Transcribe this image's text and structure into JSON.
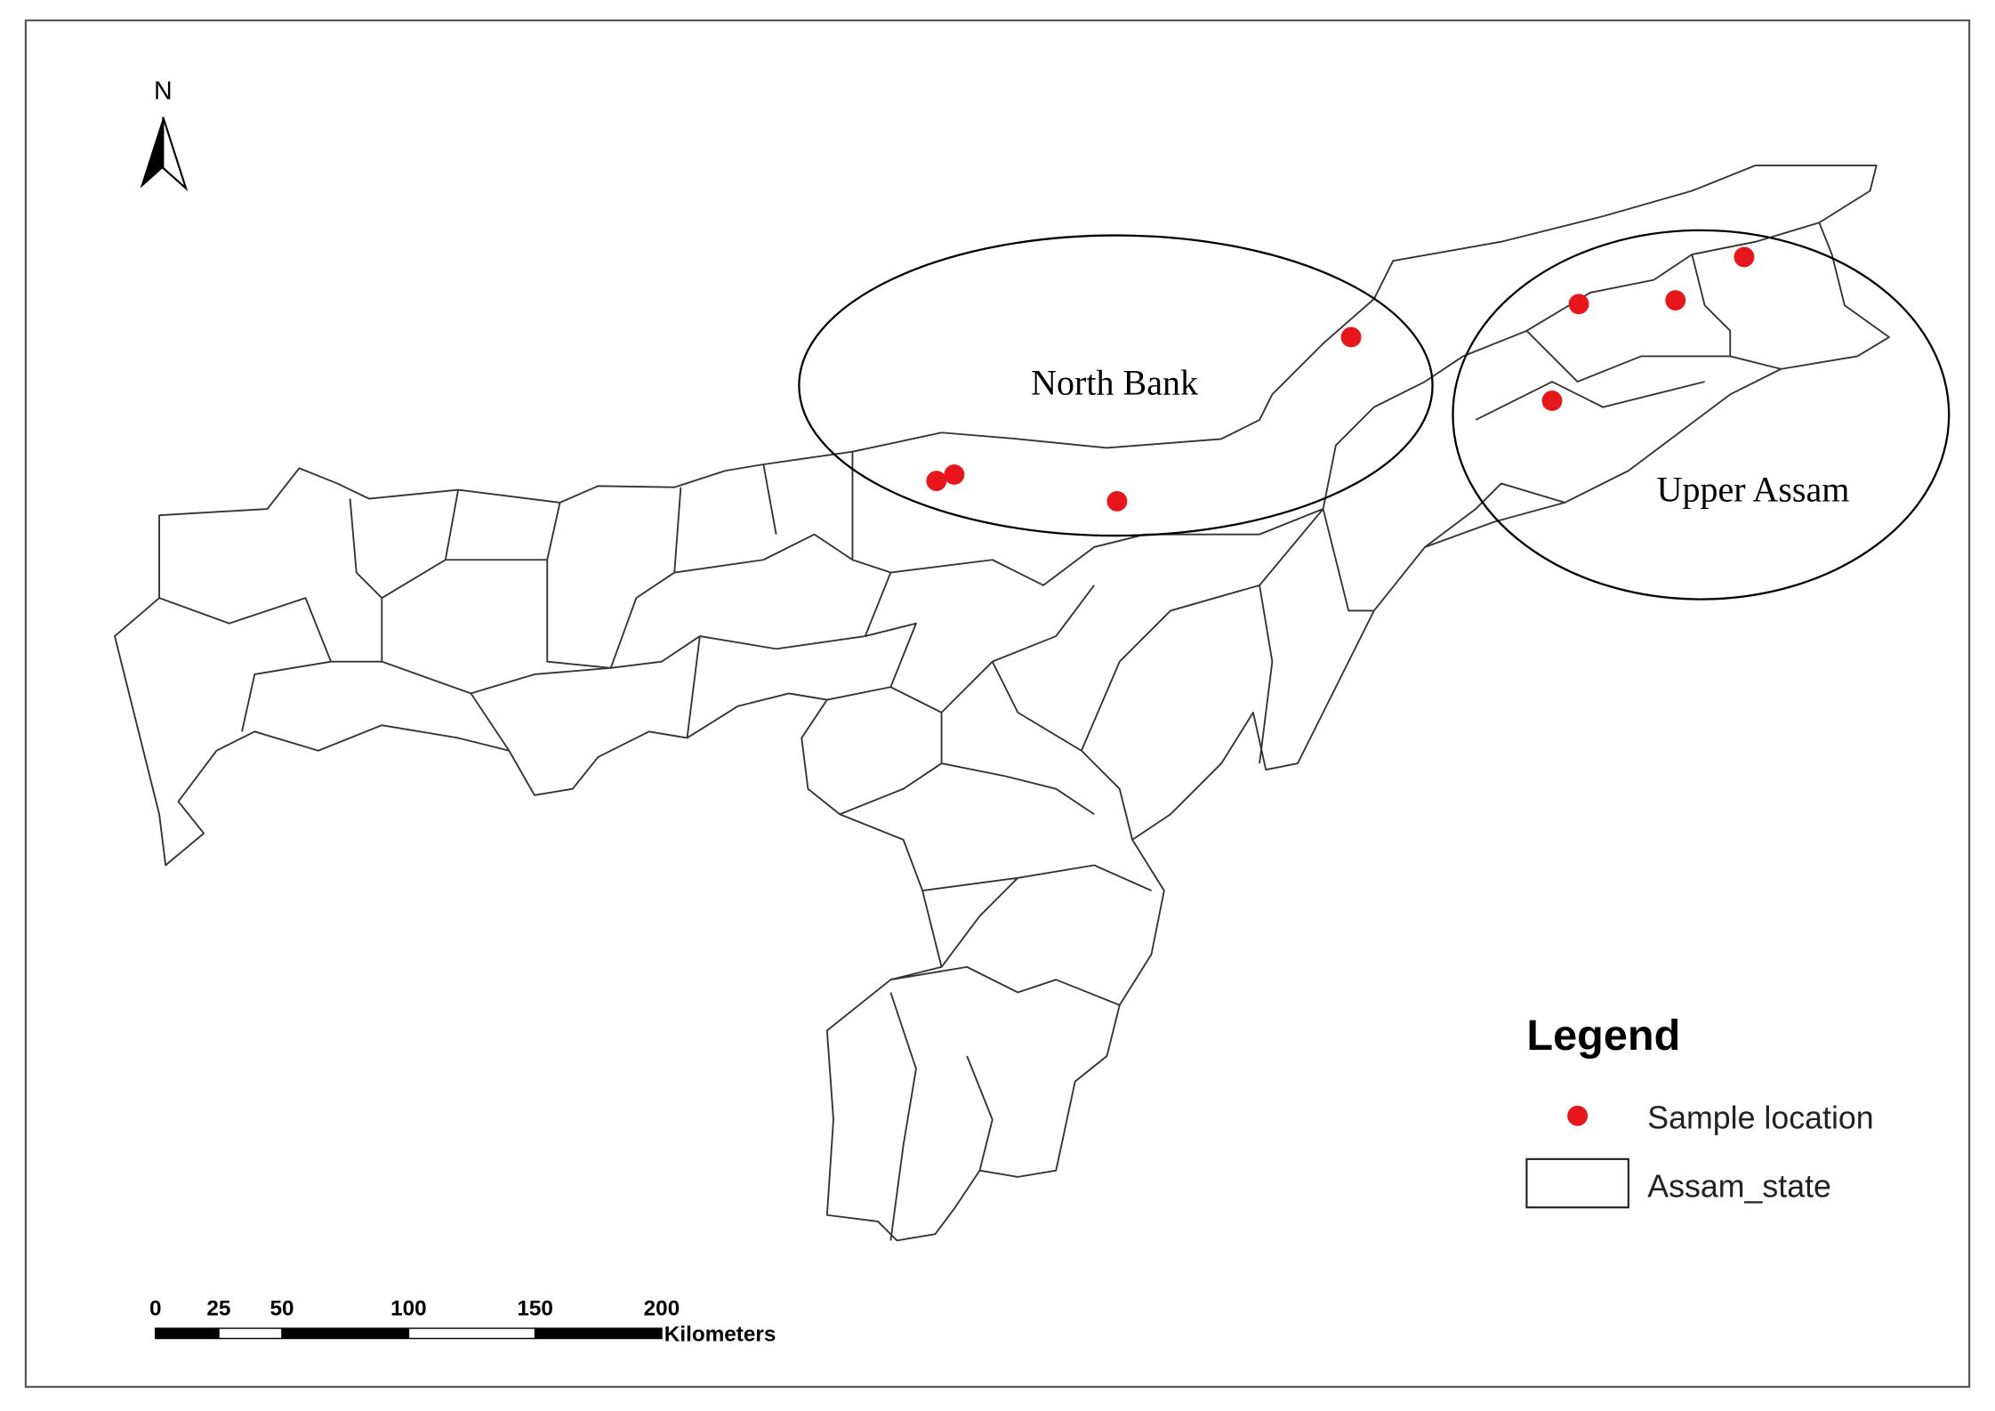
{
  "map": {
    "north_label": "N",
    "regions": [
      "North Bank",
      "Upper Assam"
    ],
    "legend": {
      "title": "Legend",
      "items": [
        "Sample location",
        "Assam_state"
      ]
    },
    "scale_bar": {
      "ticks": [
        0,
        25,
        50,
        100,
        150,
        200
      ],
      "unit": "Kilometers"
    }
  }
}
